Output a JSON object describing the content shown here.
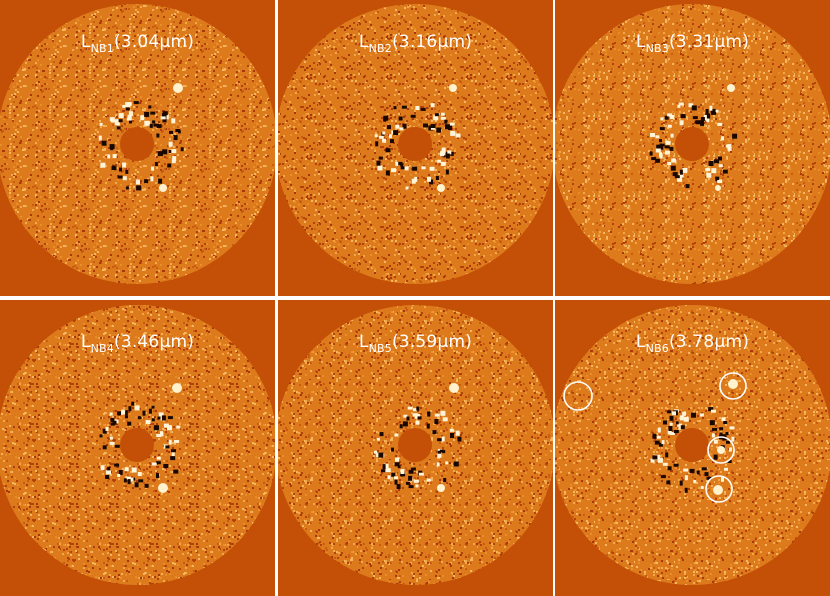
{
  "panels": [
    {
      "letter": "L",
      "band": "NB1",
      "wavelength": "(3.04μm)"
    },
    {
      "letter": "L",
      "band": "NB2",
      "wavelength": "(3.16μm)"
    },
    {
      "letter": "L",
      "band": "NB3",
      "wavelength": "(3.31μm)"
    },
    {
      "letter": "L",
      "band": "NB4",
      "wavelength": "(3.46μm)"
    },
    {
      "letter": "L",
      "band": "NB5",
      "wavelength": "(3.59μm)"
    },
    {
      "letter": "L",
      "band": "NB6",
      "wavelength": "(3.78μm)"
    }
  ],
  "colors": {
    "background": "#c44f06",
    "noise_field": "#dc7a1c",
    "divider": "#ffffff",
    "label_text": "#ffffff",
    "circle_marker": "#ffffff"
  }
}
